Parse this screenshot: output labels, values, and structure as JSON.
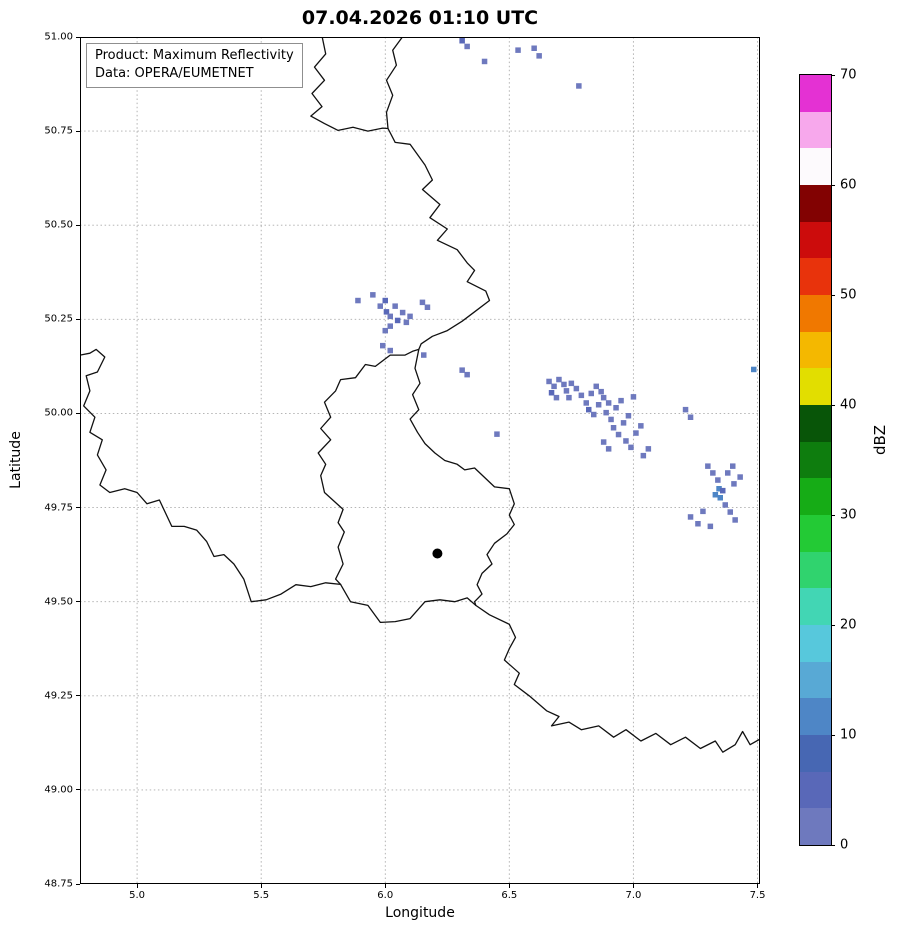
{
  "title": "07.04.2026 01:10 UTC",
  "info_box": {
    "line1": "Product: Maximum Reflectivity",
    "line2": "Data: OPERA/EUMETNET"
  },
  "colorbar": {
    "label": "dBZ",
    "min": 0,
    "max": 70,
    "ticks": [
      0,
      10,
      20,
      30,
      40,
      50,
      60,
      70
    ],
    "segments": [
      "#6e79be",
      "#5968b8",
      "#4767b3",
      "#4e86c6",
      "#58a9d5",
      "#57c8dc",
      "#42d6b4",
      "#30d36e",
      "#23ca35",
      "#16ac16",
      "#0e7d0e",
      "#085508",
      "#e2de00",
      "#f4b800",
      "#f07800",
      "#e8330c",
      "#cc0c0c",
      "#820202",
      "#fdfafd",
      "#f7a8ec",
      "#e431d3"
    ]
  },
  "chart_data": {
    "type": "heatmap",
    "title": "07.04.2026 01:10 UTC",
    "xlabel": "Longitude",
    "ylabel": "Latitude",
    "units": "dBZ",
    "xlim": [
      4.77,
      7.51
    ],
    "ylim": [
      48.75,
      51.0
    ],
    "x_ticks": [
      5.0,
      5.5,
      6.0,
      6.5,
      7.0,
      7.5
    ],
    "x_tick_labels": [
      "5.0",
      "5.5",
      "6.0",
      "6.5",
      "7.0",
      "7.5"
    ],
    "y_ticks": [
      48.75,
      49.0,
      49.25,
      49.5,
      49.75,
      50.0,
      50.25,
      50.5,
      50.75,
      51.0
    ],
    "y_tick_labels": [
      "48.75",
      "49.00",
      "49.25",
      "49.50",
      "49.75",
      "50.00",
      "50.25",
      "50.50",
      "50.75",
      "51.00"
    ],
    "grid": true,
    "legend_position": "upper left",
    "station_marker": {
      "lon": 6.21,
      "lat": 49.628
    },
    "cells": [
      [
        6.31,
        50.99,
        5
      ],
      [
        6.33,
        50.975,
        1
      ],
      [
        6.4,
        50.935,
        1
      ],
      [
        6.535,
        50.965,
        1
      ],
      [
        6.6,
        50.97,
        1
      ],
      [
        6.62,
        50.95,
        1
      ],
      [
        6.78,
        50.87,
        1
      ],
      [
        5.89,
        50.3,
        1
      ],
      [
        5.95,
        50.315,
        1
      ],
      [
        5.98,
        50.285,
        1
      ],
      [
        6.0,
        50.3,
        5
      ],
      [
        6.005,
        50.27,
        5
      ],
      [
        6.02,
        50.258,
        1
      ],
      [
        6.04,
        50.285,
        1
      ],
      [
        6.05,
        50.247,
        5
      ],
      [
        6.02,
        50.232,
        1
      ],
      [
        6.07,
        50.268,
        1
      ],
      [
        6.085,
        50.242,
        1
      ],
      [
        6.1,
        50.258,
        1
      ],
      [
        6.0,
        50.22,
        1
      ],
      [
        6.15,
        50.295,
        1
      ],
      [
        6.17,
        50.282,
        1
      ],
      [
        5.99,
        50.18,
        1
      ],
      [
        6.02,
        50.167,
        1
      ],
      [
        6.155,
        50.155,
        1
      ],
      [
        6.31,
        50.115,
        1
      ],
      [
        6.33,
        50.103,
        1
      ],
      [
        6.45,
        49.945,
        1
      ],
      [
        6.66,
        50.085,
        1
      ],
      [
        6.68,
        50.072,
        1
      ],
      [
        6.7,
        50.09,
        1
      ],
      [
        6.72,
        50.077,
        1
      ],
      [
        6.67,
        50.055,
        5
      ],
      [
        6.69,
        50.042,
        1
      ],
      [
        6.73,
        50.06,
        1
      ],
      [
        6.75,
        50.08,
        1
      ],
      [
        6.77,
        50.066,
        1
      ],
      [
        6.74,
        50.042,
        1
      ],
      [
        6.79,
        50.048,
        1
      ],
      [
        6.81,
        50.028,
        1
      ],
      [
        6.83,
        50.053,
        1
      ],
      [
        6.85,
        50.072,
        1
      ],
      [
        6.87,
        50.058,
        1
      ],
      [
        6.82,
        50.01,
        5
      ],
      [
        6.84,
        49.997,
        1
      ],
      [
        6.86,
        50.023,
        1
      ],
      [
        6.88,
        50.042,
        1
      ],
      [
        6.9,
        50.028,
        1
      ],
      [
        6.89,
        50.002,
        1
      ],
      [
        6.91,
        49.984,
        1
      ],
      [
        6.93,
        50.015,
        1
      ],
      [
        6.95,
        50.034,
        1
      ],
      [
        6.92,
        49.962,
        1
      ],
      [
        6.94,
        49.944,
        1
      ],
      [
        6.96,
        49.975,
        1
      ],
      [
        6.98,
        49.994,
        1
      ],
      [
        7.0,
        50.044,
        1
      ],
      [
        6.97,
        49.927,
        1
      ],
      [
        6.99,
        49.91,
        1
      ],
      [
        7.01,
        49.948,
        1
      ],
      [
        7.03,
        49.967,
        1
      ],
      [
        6.88,
        49.924,
        1
      ],
      [
        6.9,
        49.906,
        1
      ],
      [
        7.04,
        49.888,
        1
      ],
      [
        7.06,
        49.906,
        1
      ],
      [
        7.21,
        50.01,
        1
      ],
      [
        7.23,
        49.99,
        1
      ],
      [
        7.23,
        49.725,
        1
      ],
      [
        7.26,
        49.707,
        1
      ],
      [
        7.28,
        49.74,
        1
      ],
      [
        7.3,
        49.86,
        1
      ],
      [
        7.32,
        49.842,
        1
      ],
      [
        7.34,
        49.823,
        1
      ],
      [
        7.345,
        49.8,
        11
      ],
      [
        7.33,
        49.784,
        11
      ],
      [
        7.35,
        49.776,
        11
      ],
      [
        7.36,
        49.795,
        5
      ],
      [
        7.38,
        49.842,
        1
      ],
      [
        7.4,
        49.86,
        1
      ],
      [
        7.37,
        49.757,
        1
      ],
      [
        7.39,
        49.738,
        1
      ],
      [
        7.405,
        49.813,
        1
      ],
      [
        7.43,
        49.831,
        1
      ],
      [
        7.31,
        49.7,
        1
      ],
      [
        7.41,
        49.717,
        1
      ],
      [
        7.485,
        50.117,
        11
      ]
    ],
    "borders": [
      [
        [
          5.746,
          51.0
        ],
        [
          5.76,
          50.955
        ],
        [
          5.715,
          50.92
        ],
        [
          5.755,
          50.885
        ],
        [
          5.705,
          50.85
        ],
        [
          5.745,
          50.815
        ],
        [
          5.7,
          50.79
        ],
        [
          5.755,
          50.77
        ],
        [
          5.81,
          50.752
        ],
        [
          5.87,
          50.76
        ],
        [
          5.93,
          50.75
        ],
        [
          5.99,
          50.758
        ],
        [
          6.011,
          50.757
        ],
        [
          6.005,
          50.8
        ],
        [
          6.03,
          50.845
        ],
        [
          6.005,
          50.885
        ],
        [
          6.045,
          50.925
        ],
        [
          6.03,
          50.965
        ],
        [
          6.069,
          51.0
        ]
      ],
      [
        [
          6.011,
          50.757
        ],
        [
          6.04,
          50.72
        ],
        [
          6.1,
          50.715
        ],
        [
          6.16,
          50.66
        ],
        [
          6.19,
          50.62
        ],
        [
          6.15,
          50.595
        ],
        [
          6.22,
          50.555
        ],
        [
          6.18,
          50.52
        ],
        [
          6.25,
          50.49
        ],
        [
          6.21,
          50.46
        ],
        [
          6.29,
          50.435
        ],
        [
          6.33,
          50.4
        ],
        [
          6.36,
          50.38
        ],
        [
          6.33,
          50.35
        ],
        [
          6.405,
          50.325
        ],
        [
          6.42,
          50.3
        ],
        [
          6.36,
          50.27
        ],
        [
          6.31,
          50.245
        ],
        [
          6.25,
          50.22
        ],
        [
          6.19,
          50.205
        ],
        [
          6.145,
          50.185
        ],
        [
          6.135,
          50.17
        ],
        [
          6.12,
          50.12
        ],
        [
          6.14,
          50.08
        ],
        [
          6.11,
          50.05
        ],
        [
          6.135,
          50.01
        ],
        [
          6.1,
          49.985
        ],
        [
          6.13,
          49.95
        ],
        [
          6.16,
          49.92
        ],
        [
          6.2,
          49.895
        ],
        [
          6.24,
          49.875
        ],
        [
          6.29,
          49.865
        ],
        [
          6.32,
          49.85
        ],
        [
          6.36,
          49.855
        ],
        [
          6.4,
          49.83
        ],
        [
          6.44,
          49.805
        ],
        [
          6.5,
          49.8
        ],
        [
          6.52,
          49.76
        ],
        [
          6.5,
          49.73
        ],
        [
          6.52,
          49.705
        ],
        [
          6.49,
          49.68
        ],
        [
          6.44,
          49.655
        ],
        [
          6.41,
          49.625
        ],
        [
          6.43,
          49.6
        ],
        [
          6.39,
          49.575
        ],
        [
          6.37,
          49.545
        ],
        [
          6.39,
          49.52
        ],
        [
          6.36,
          49.5
        ],
        [
          6.365,
          49.49
        ],
        [
          6.42,
          49.465
        ],
        [
          6.5,
          49.44
        ],
        [
          6.525,
          49.405
        ],
        [
          6.5,
          49.375
        ],
        [
          6.48,
          49.345
        ],
        [
          6.54,
          49.31
        ],
        [
          6.52,
          49.28
        ],
        [
          6.58,
          49.25
        ],
        [
          6.65,
          49.21
        ],
        [
          6.7,
          49.195
        ],
        [
          6.67,
          49.17
        ],
        [
          6.74,
          49.18
        ],
        [
          6.79,
          49.16
        ],
        [
          6.86,
          49.17
        ],
        [
          6.92,
          49.14
        ],
        [
          6.97,
          49.16
        ],
        [
          7.03,
          49.13
        ],
        [
          7.09,
          49.15
        ],
        [
          7.15,
          49.12
        ],
        [
          7.21,
          49.14
        ],
        [
          7.27,
          49.11
        ],
        [
          7.33,
          49.13
        ],
        [
          7.36,
          49.1
        ],
        [
          7.41,
          49.12
        ],
        [
          7.44,
          49.155
        ],
        [
          7.47,
          49.12
        ],
        [
          7.51,
          49.135
        ]
      ],
      [
        [
          6.365,
          49.49
        ],
        [
          6.33,
          49.51
        ],
        [
          6.28,
          49.5
        ],
        [
          6.22,
          49.505
        ],
        [
          6.16,
          49.5
        ],
        [
          6.1,
          49.455
        ],
        [
          6.04,
          49.447
        ],
        [
          5.98,
          49.445
        ],
        [
          5.93,
          49.49
        ],
        [
          5.86,
          49.5
        ],
        [
          5.82,
          49.546
        ],
        [
          5.8,
          49.56
        ],
        [
          5.83,
          49.6
        ],
        [
          5.81,
          49.645
        ],
        [
          5.835,
          49.685
        ],
        [
          5.81,
          49.71
        ],
        [
          5.83,
          49.745
        ],
        [
          5.755,
          49.79
        ],
        [
          5.74,
          49.835
        ],
        [
          5.76,
          49.865
        ],
        [
          5.73,
          49.895
        ],
        [
          5.78,
          49.93
        ],
        [
          5.74,
          49.96
        ],
        [
          5.78,
          49.99
        ],
        [
          5.755,
          50.03
        ],
        [
          5.8,
          50.06
        ],
        [
          5.82,
          50.09
        ],
        [
          5.88,
          50.095
        ],
        [
          5.92,
          50.13
        ],
        [
          5.96,
          50.125
        ],
        [
          6.02,
          50.155
        ],
        [
          6.08,
          50.155
        ],
        [
          6.11,
          50.165
        ],
        [
          6.135,
          50.17
        ]
      ],
      [
        [
          4.77,
          50.155
        ],
        [
          4.81,
          50.16
        ],
        [
          4.835,
          50.17
        ],
        [
          4.87,
          50.15
        ],
        [
          4.84,
          50.11
        ],
        [
          4.795,
          50.1
        ],
        [
          4.81,
          50.06
        ],
        [
          4.785,
          50.02
        ],
        [
          4.83,
          49.99
        ],
        [
          4.81,
          49.95
        ],
        [
          4.86,
          49.93
        ],
        [
          4.84,
          49.89
        ],
        [
          4.875,
          49.85
        ],
        [
          4.85,
          49.81
        ],
        [
          4.89,
          49.79
        ],
        [
          4.95,
          49.8
        ],
        [
          5.0,
          49.79
        ],
        [
          5.04,
          49.76
        ],
        [
          5.09,
          49.77
        ],
        [
          5.14,
          49.7
        ],
        [
          5.19,
          49.7
        ],
        [
          5.24,
          49.69
        ],
        [
          5.28,
          49.66
        ],
        [
          5.31,
          49.62
        ],
        [
          5.35,
          49.625
        ],
        [
          5.39,
          49.6
        ],
        [
          5.43,
          49.56
        ],
        [
          5.46,
          49.5
        ],
        [
          5.52,
          49.505
        ],
        [
          5.58,
          49.52
        ],
        [
          5.64,
          49.545
        ],
        [
          5.7,
          49.54
        ],
        [
          5.76,
          49.55
        ],
        [
          5.82,
          49.546
        ]
      ]
    ]
  }
}
